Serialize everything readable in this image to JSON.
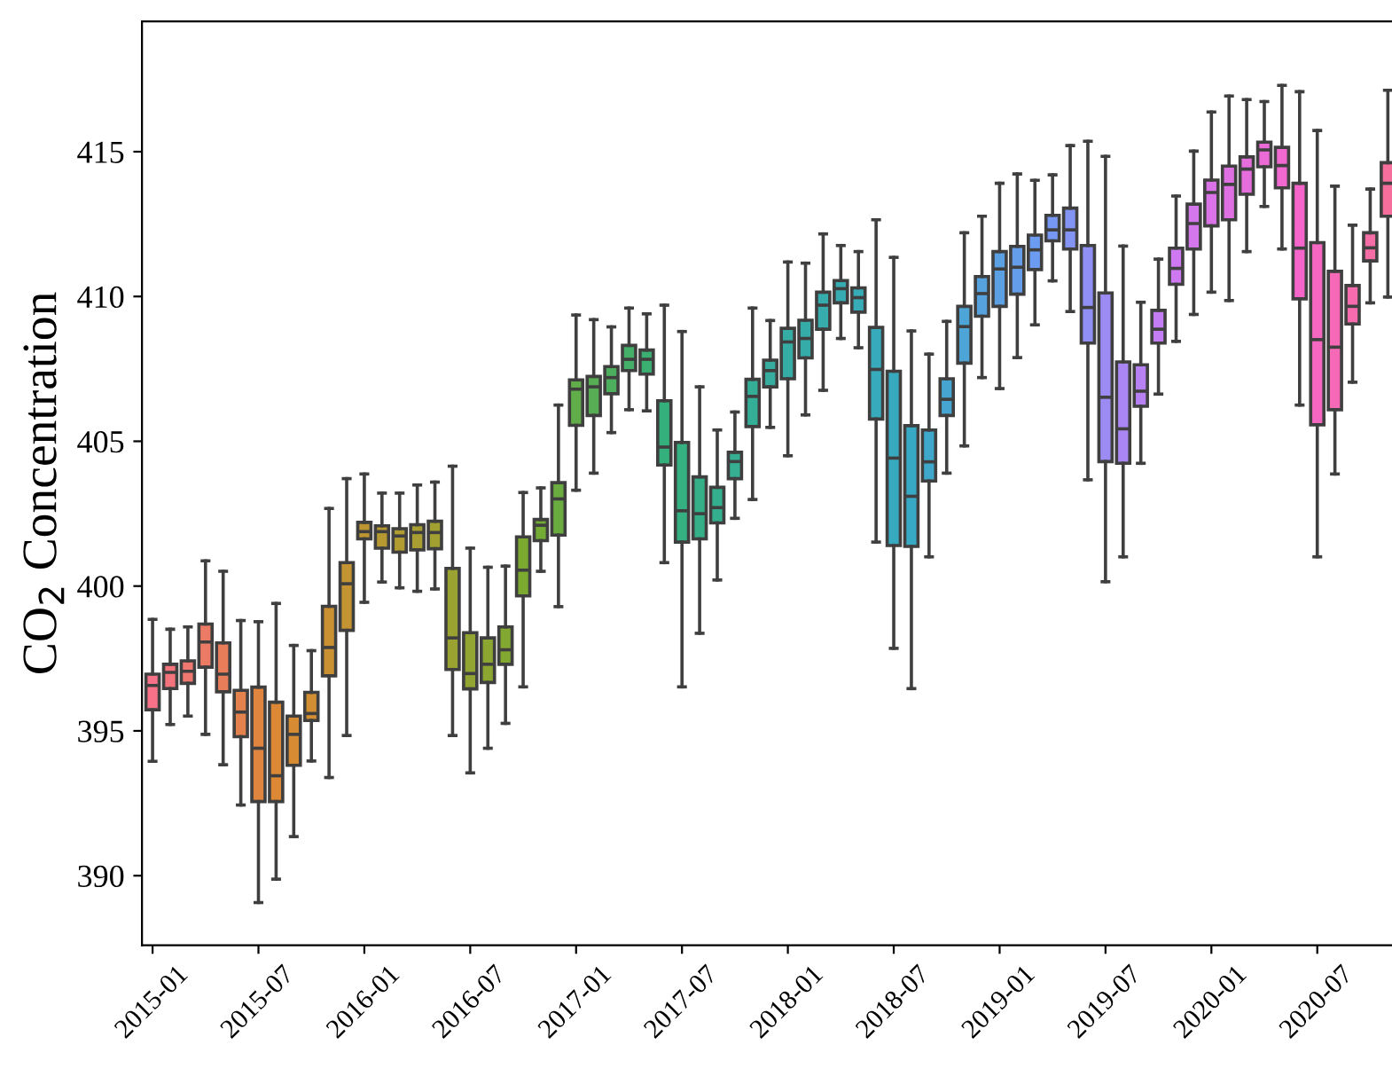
{
  "chart_data": {
    "type": "box",
    "ylabel": "CO$_{2}$ Concentration",
    "categories": [
      "2015-01",
      null,
      null,
      null,
      null,
      null,
      "2015-07",
      null,
      null,
      null,
      null,
      null,
      "2016-01",
      null,
      null,
      null,
      null,
      null,
      "2016-07",
      null,
      null,
      null,
      null,
      null,
      "2017-01",
      null,
      null,
      null,
      null,
      null,
      "2017-07",
      null,
      null,
      null,
      null,
      null,
      "2018-01",
      null,
      null,
      null,
      null,
      null,
      "2018-07",
      null,
      null,
      null,
      null,
      null,
      "2019-01",
      null,
      null,
      null,
      null,
      null,
      "2019-07",
      null,
      null,
      null,
      null,
      null,
      "2020-01",
      null,
      null,
      null,
      null,
      null,
      "2020-07",
      null,
      null,
      null,
      null
    ],
    "ylim": [
      387.6,
      419.5
    ],
    "yticks": [
      390,
      395,
      400,
      405,
      410,
      415
    ],
    "grid": false,
    "colors": [
      "#f77189",
      "#f3747d",
      "#ef7871",
      "#ec7b65",
      "#e87e59",
      "#e4824d",
      "#e08540",
      "#dd8834",
      "#d78b32",
      "#d18e32",
      "#ca9132",
      "#c49432",
      "#bd9631",
      "#b79931",
      "#b19c31",
      "#a99e31",
      "#a2a031",
      "#9aa231",
      "#92a431",
      "#8ba631",
      "#83a831",
      "#7caa31",
      "#73ab35",
      "#6aac3f",
      "#60ad49",
      "#57ad53",
      "#4dae5e",
      "#44af68",
      "#3baf72",
      "#33b07b",
      "#34b081",
      "#34af87",
      "#34af8d",
      "#35ae92",
      "#35ae98",
      "#36ad9e",
      "#36ada4",
      "#36aca9",
      "#37acad",
      "#37abb2",
      "#37abb6",
      "#37aabb",
      "#38aabf",
      "#38a9c4",
      "#3ea7ca",
      "#46a6d1",
      "#4da4d7",
      "#55a2de",
      "#5ca0e4",
      "#649eeb",
      "#6b9cf1",
      "#7698f4",
      "#8394f4",
      "#908ff4",
      "#9d8bf4",
      "#aa86f4",
      "#b781f4",
      "#c47df4",
      "#ce79f2",
      "#d476ec",
      "#da73e7",
      "#df70e1",
      "#e56ddc",
      "#eb6ad6",
      "#f068d0",
      "#f565ca",
      "#f567c1",
      "#f669b7",
      "#f66aae",
      "#f66ca5",
      "#f66e9b"
    ],
    "boxes": [
      {
        "low": 393.95,
        "q1": 395.73,
        "median": 396.57,
        "q3": 396.96,
        "high": 398.85
      },
      {
        "low": 395.22,
        "q1": 396.46,
        "median": 397.02,
        "q3": 397.3,
        "high": 398.51
      },
      {
        "low": 395.51,
        "q1": 396.64,
        "median": 397.06,
        "q3": 397.42,
        "high": 398.59
      },
      {
        "low": 394.88,
        "q1": 397.2,
        "median": 398.07,
        "q3": 398.69,
        "high": 400.87
      },
      {
        "low": 393.83,
        "q1": 396.35,
        "median": 396.96,
        "q3": 398.04,
        "high": 400.51
      },
      {
        "low": 392.44,
        "q1": 394.8,
        "median": 395.65,
        "q3": 396.4,
        "high": 398.81
      },
      {
        "low": 389.07,
        "q1": 392.56,
        "median": 394.4,
        "q3": 396.51,
        "high": 398.77
      },
      {
        "low": 389.88,
        "q1": 392.56,
        "median": 393.45,
        "q3": 395.99,
        "high": 399.4
      },
      {
        "low": 391.35,
        "q1": 393.81,
        "median": 394.88,
        "q3": 395.51,
        "high": 397.95
      },
      {
        "low": 393.96,
        "q1": 395.36,
        "median": 395.6,
        "q3": 396.33,
        "high": 397.77
      },
      {
        "low": 393.39,
        "q1": 396.9,
        "median": 397.88,
        "q3": 399.3,
        "high": 402.68
      },
      {
        "low": 394.84,
        "q1": 398.47,
        "median": 400.08,
        "q3": 400.81,
        "high": 403.71
      },
      {
        "low": 399.44,
        "q1": 401.63,
        "median": 401.88,
        "q3": 402.2,
        "high": 403.87
      },
      {
        "low": 400.14,
        "q1": 401.31,
        "median": 401.88,
        "q3": 402.08,
        "high": 403.21
      },
      {
        "low": 399.94,
        "q1": 401.17,
        "median": 401.73,
        "q3": 401.98,
        "high": 403.21
      },
      {
        "low": 399.82,
        "q1": 401.25,
        "median": 401.85,
        "q3": 402.12,
        "high": 403.49
      },
      {
        "low": 399.9,
        "q1": 401.29,
        "median": 401.85,
        "q3": 402.24,
        "high": 403.59
      },
      {
        "low": 394.84,
        "q1": 397.12,
        "median": 398.21,
        "q3": 400.61,
        "high": 404.14
      },
      {
        "low": 393.55,
        "q1": 396.45,
        "median": 396.98,
        "q3": 398.39,
        "high": 401.31
      },
      {
        "low": 394.4,
        "q1": 396.67,
        "median": 397.3,
        "q3": 398.21,
        "high": 400.65
      },
      {
        "low": 395.26,
        "q1": 397.3,
        "median": 397.8,
        "q3": 398.59,
        "high": 400.69
      },
      {
        "low": 396.52,
        "q1": 399.66,
        "median": 400.55,
        "q3": 401.7,
        "high": 403.23
      },
      {
        "low": 400.51,
        "q1": 401.57,
        "median": 402.1,
        "q3": 402.3,
        "high": 403.39
      },
      {
        "low": 399.29,
        "q1": 401.76,
        "median": 403.01,
        "q3": 403.57,
        "high": 406.25
      },
      {
        "low": 403.31,
        "q1": 405.55,
        "median": 406.8,
        "q3": 407.12,
        "high": 409.36
      },
      {
        "low": 403.9,
        "q1": 405.89,
        "median": 406.88,
        "q3": 407.24,
        "high": 409.2
      },
      {
        "low": 405.3,
        "q1": 406.64,
        "median": 407.2,
        "q3": 407.58,
        "high": 408.95
      },
      {
        "low": 406.09,
        "q1": 407.44,
        "median": 407.83,
        "q3": 408.31,
        "high": 409.6
      },
      {
        "low": 406.05,
        "q1": 407.32,
        "median": 407.83,
        "q3": 408.15,
        "high": 409.4
      },
      {
        "low": 400.81,
        "q1": 404.18,
        "median": 404.8,
        "q3": 406.4,
        "high": 409.7
      },
      {
        "low": 396.52,
        "q1": 401.52,
        "median": 402.6,
        "q3": 404.96,
        "high": 408.79
      },
      {
        "low": 398.37,
        "q1": 401.63,
        "median": 402.5,
        "q3": 403.77,
        "high": 406.88
      },
      {
        "low": 400.21,
        "q1": 402.18,
        "median": 402.71,
        "q3": 403.41,
        "high": 405.39
      },
      {
        "low": 402.34,
        "q1": 403.71,
        "median": 404.3,
        "q3": 404.62,
        "high": 406.01
      },
      {
        "low": 402.99,
        "q1": 405.51,
        "median": 406.55,
        "q3": 407.14,
        "high": 409.6
      },
      {
        "low": 405.48,
        "q1": 406.88,
        "median": 407.44,
        "q3": 407.8,
        "high": 409.17
      },
      {
        "low": 404.5,
        "q1": 407.16,
        "median": 408.43,
        "q3": 408.9,
        "high": 411.19
      },
      {
        "low": 405.91,
        "q1": 407.88,
        "median": 408.55,
        "q3": 409.18,
        "high": 411.15
      },
      {
        "low": 406.76,
        "q1": 408.87,
        "median": 409.7,
        "q3": 410.15,
        "high": 412.16
      },
      {
        "low": 408.55,
        "q1": 409.78,
        "median": 410.27,
        "q3": 410.55,
        "high": 411.76
      },
      {
        "low": 408.23,
        "q1": 409.46,
        "median": 409.96,
        "q3": 410.3,
        "high": 411.55
      },
      {
        "low": 401.52,
        "q1": 405.77,
        "median": 407.48,
        "q3": 408.93,
        "high": 412.65
      },
      {
        "low": 397.85,
        "q1": 401.4,
        "median": 404.42,
        "q3": 407.42,
        "high": 411.35
      },
      {
        "low": 396.46,
        "q1": 401.37,
        "median": 403.1,
        "q3": 405.54,
        "high": 408.81
      },
      {
        "low": 401.01,
        "q1": 403.63,
        "median": 404.29,
        "q3": 405.39,
        "high": 408.01
      },
      {
        "low": 403.9,
        "q1": 405.89,
        "median": 406.45,
        "q3": 407.16,
        "high": 409.14
      },
      {
        "low": 404.84,
        "q1": 407.7,
        "median": 408.96,
        "q3": 409.66,
        "high": 412.2
      },
      {
        "low": 407.2,
        "q1": 409.32,
        "median": 410.1,
        "q3": 410.69,
        "high": 412.77
      },
      {
        "low": 406.82,
        "q1": 409.66,
        "median": 410.95,
        "q3": 411.55,
        "high": 413.91
      },
      {
        "low": 407.89,
        "q1": 410.08,
        "median": 411.01,
        "q3": 411.73,
        "high": 414.23
      },
      {
        "low": 409.02,
        "q1": 410.93,
        "median": 411.61,
        "q3": 412.12,
        "high": 414.01
      },
      {
        "low": 410.54,
        "q1": 411.92,
        "median": 412.3,
        "q3": 412.8,
        "high": 414.2
      },
      {
        "low": 409.48,
        "q1": 411.64,
        "median": 412.3,
        "q3": 413.05,
        "high": 415.21
      },
      {
        "low": 403.67,
        "q1": 408.39,
        "median": 409.62,
        "q3": 411.76,
        "high": 415.36
      },
      {
        "low": 400.15,
        "q1": 404.3,
        "median": 406.52,
        "q3": 410.12,
        "high": 414.84
      },
      {
        "low": 401.01,
        "q1": 404.24,
        "median": 405.43,
        "q3": 407.74,
        "high": 411.74
      },
      {
        "low": 404.24,
        "q1": 406.21,
        "median": 406.73,
        "q3": 407.64,
        "high": 409.8
      },
      {
        "low": 406.63,
        "q1": 408.39,
        "median": 408.87,
        "q3": 409.52,
        "high": 411.29
      },
      {
        "low": 408.45,
        "q1": 410.42,
        "median": 410.97,
        "q3": 411.67,
        "high": 413.47
      },
      {
        "low": 409.38,
        "q1": 411.64,
        "median": 412.52,
        "q3": 413.19,
        "high": 415.02
      },
      {
        "low": 410.15,
        "q1": 412.44,
        "median": 413.59,
        "q3": 414.02,
        "high": 416.37
      },
      {
        "low": 409.86,
        "q1": 412.65,
        "median": 413.87,
        "q3": 414.5,
        "high": 416.92
      },
      {
        "low": 411.55,
        "q1": 413.53,
        "median": 414.4,
        "q3": 414.82,
        "high": 416.8
      },
      {
        "low": 413.11,
        "q1": 414.48,
        "median": 415.06,
        "q3": 415.33,
        "high": 416.73
      },
      {
        "low": 411.64,
        "q1": 413.75,
        "median": 414.52,
        "q3": 415.15,
        "high": 417.29
      },
      {
        "low": 406.25,
        "q1": 409.92,
        "median": 411.67,
        "q3": 413.91,
        "high": 417.07
      },
      {
        "low": 401.01,
        "q1": 405.57,
        "median": 408.51,
        "q3": 411.86,
        "high": 415.73
      },
      {
        "low": 403.87,
        "q1": 406.09,
        "median": 408.25,
        "q3": 410.87,
        "high": 413.81
      },
      {
        "low": 407.04,
        "q1": 409.05,
        "median": 409.66,
        "q3": 410.38,
        "high": 412.46
      },
      {
        "low": 409.78,
        "q1": 411.23,
        "median": 411.68,
        "q3": 412.2,
        "high": 413.71
      },
      {
        "low": 409.98,
        "q1": 412.77,
        "median": 413.91,
        "q3": 414.62,
        "high": 417.12
      }
    ]
  }
}
